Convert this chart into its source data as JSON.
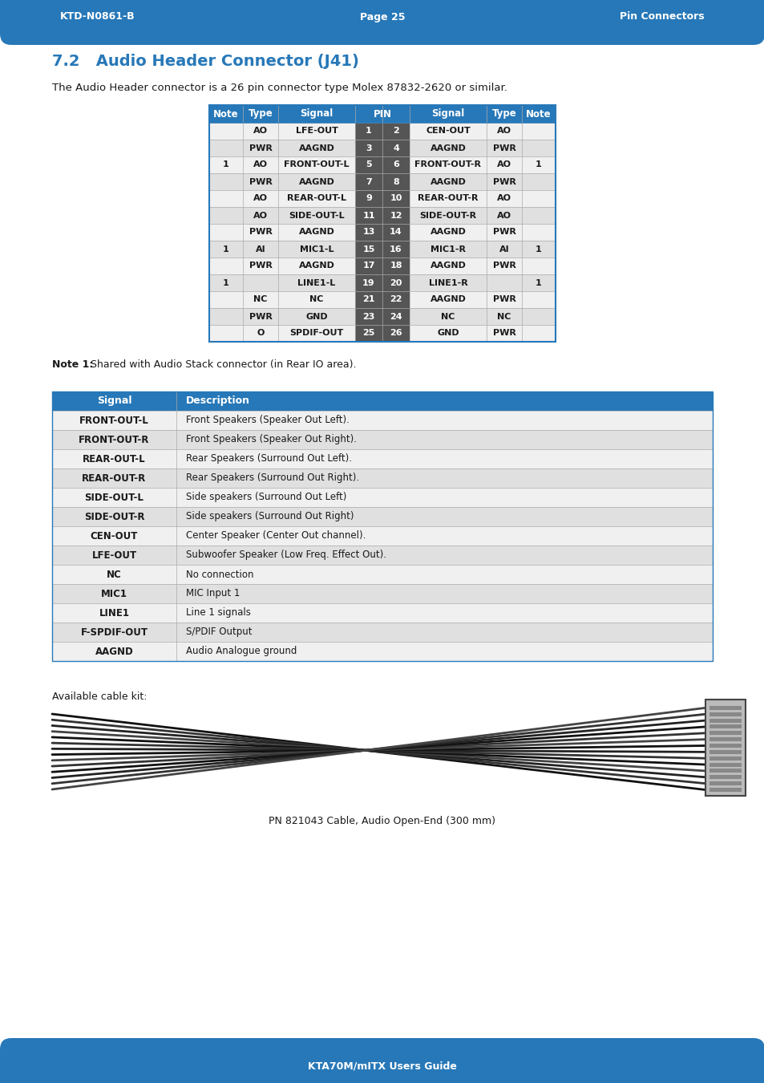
{
  "header_bg": "#2778b8",
  "header_text_color": "#ffffff",
  "header_left": "KTD-N0861-B",
  "header_center": "Page 25",
  "header_right": "Pin Connectors",
  "footer_bg": "#2778b8",
  "footer_text": "KTA70M/mITX Users Guide",
  "section_title_num": "7.2",
  "section_title_text": "Audio Header Connector (J41)",
  "section_title_color": "#2778b8",
  "intro_text": "The Audio Header connector is a 26 pin connector type Molex 87832-2620 or similar.",
  "pin_table_header_bg": "#2778b8",
  "pin_col_bg": "#555555",
  "pin_rows": [
    [
      "",
      "AO",
      "LFE-OUT",
      "1",
      "2",
      "CEN-OUT",
      "AO",
      ""
    ],
    [
      "",
      "PWR",
      "AAGND",
      "3",
      "4",
      "AAGND",
      "PWR",
      ""
    ],
    [
      "1",
      "AO",
      "FRONT-OUT-L",
      "5",
      "6",
      "FRONT-OUT-R",
      "AO",
      "1"
    ],
    [
      "",
      "PWR",
      "AAGND",
      "7",
      "8",
      "AAGND",
      "PWR",
      ""
    ],
    [
      "",
      "AO",
      "REAR-OUT-L",
      "9",
      "10",
      "REAR-OUT-R",
      "AO",
      ""
    ],
    [
      "",
      "AO",
      "SIDE-OUT-L",
      "11",
      "12",
      "SIDE-OUT-R",
      "AO",
      ""
    ],
    [
      "",
      "PWR",
      "AAGND",
      "13",
      "14",
      "AAGND",
      "PWR",
      ""
    ],
    [
      "1",
      "AI",
      "MIC1-L",
      "15",
      "16",
      "MIC1-R",
      "AI",
      "1"
    ],
    [
      "",
      "PWR",
      "AAGND",
      "17",
      "18",
      "AAGND",
      "PWR",
      ""
    ],
    [
      "1",
      "",
      "LINE1-L",
      "19",
      "20",
      "LINE1-R",
      "",
      "1"
    ],
    [
      "",
      "NC",
      "NC",
      "21",
      "22",
      "AAGND",
      "PWR",
      ""
    ],
    [
      "",
      "PWR",
      "GND",
      "23",
      "24",
      "NC",
      "NC",
      ""
    ],
    [
      "",
      "O",
      "SPDIF-OUT",
      "25",
      "26",
      "GND",
      "PWR",
      ""
    ]
  ],
  "note_bold": "Note 1:",
  "note_rest": " Shared with Audio Stack connector (in Rear IO area).",
  "desc_table_header": [
    "Signal",
    "Description"
  ],
  "desc_table_header_bg": "#2778b8",
  "desc_rows": [
    [
      "FRONT-OUT-L",
      "Front Speakers (Speaker Out Left)."
    ],
    [
      "FRONT-OUT-R",
      "Front Speakers (Speaker Out Right)."
    ],
    [
      "REAR-OUT-L",
      "Rear Speakers (Surround Out Left)."
    ],
    [
      "REAR-OUT-R",
      "Rear Speakers (Surround Out Right)."
    ],
    [
      "SIDE-OUT-L",
      "Side speakers (Surround Out Left)"
    ],
    [
      "SIDE-OUT-R",
      "Side speakers (Surround Out Right)"
    ],
    [
      "CEN-OUT",
      "Center Speaker (Center Out channel)."
    ],
    [
      "LFE-OUT",
      "Subwoofer Speaker (Low Freq. Effect Out)."
    ],
    [
      "NC",
      "No connection"
    ],
    [
      "MIC1",
      "MIC Input 1"
    ],
    [
      "LINE1",
      "Line 1 signals"
    ],
    [
      "F-SPDIF-OUT",
      "S/PDIF Output"
    ],
    [
      "AAGND",
      "Audio Analogue ground"
    ]
  ],
  "cable_label": "Available cable kit:",
  "cable_caption": "PN 821043 Cable, Audio Open-End (300 mm)",
  "bg_color": "#ffffff",
  "text_color": "#1a1a1a",
  "alt_row_color": "#e0e0e0",
  "white_row_color": "#f0f0f0",
  "grid_color": "#aaaaaa"
}
